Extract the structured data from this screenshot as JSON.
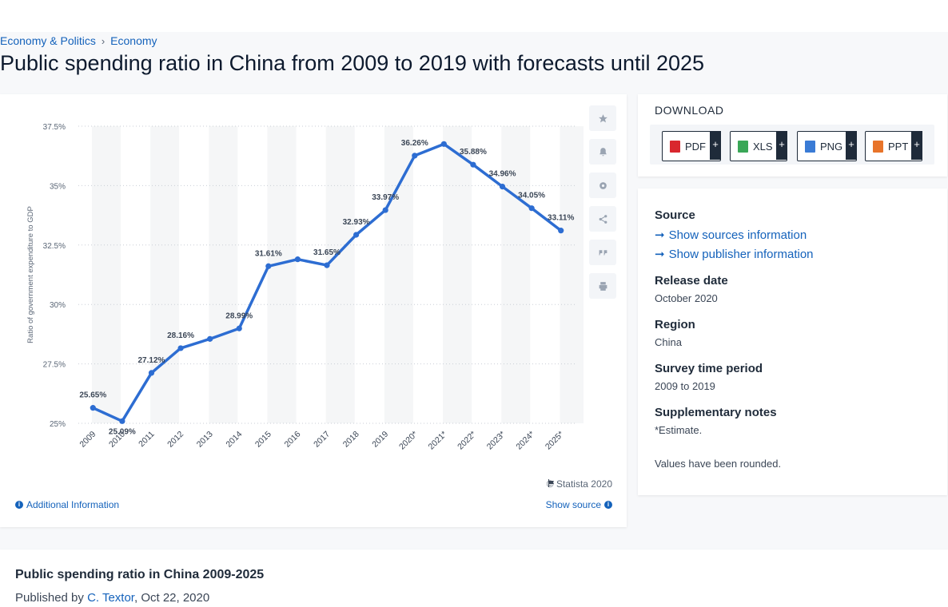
{
  "breadcrumb": {
    "parent": "Economy & Politics",
    "separator": "›",
    "current": "Economy"
  },
  "page_title": "Public spending ratio in China from 2009 to 2019 with forecasts until 2025",
  "chart": {
    "copyright": "© Statista 2020",
    "additional_info": "Additional Information",
    "show_source": "Show source",
    "tools": [
      "star-icon",
      "bell-icon",
      "gear-icon",
      "share-icon",
      "quote-icon",
      "print-icon"
    ]
  },
  "chart_data": {
    "type": "line",
    "title": "",
    "xlabel": "",
    "ylabel": "Ratio of government expenditure to GDP",
    "categories": [
      "2009",
      "2010",
      "2011",
      "2012",
      "2013",
      "2014",
      "2015",
      "2016",
      "2017",
      "2018",
      "2019",
      "2020*",
      "2021*",
      "2022*",
      "2023*",
      "2024*",
      "2025*"
    ],
    "values": [
      25.65,
      25.09,
      27.12,
      28.16,
      28.55,
      28.99,
      31.61,
      31.9,
      31.65,
      32.93,
      33.97,
      36.26,
      36.75,
      35.88,
      34.96,
      34.05,
      33.11
    ],
    "data_labels": [
      "25.65%",
      "25.09%",
      "27.12%",
      "28.16%",
      "",
      "28.99%",
      "31.61%",
      "",
      "31.65%",
      "32.93%",
      "33.97%",
      "36.26%",
      "",
      "35.88%",
      "34.96%",
      "34.05%",
      "33.11%"
    ],
    "ylim": [
      25,
      37.5
    ],
    "yticks": [
      25,
      27.5,
      30,
      32.5,
      35,
      37.5
    ],
    "ytick_labels": [
      "25%",
      "27.5%",
      "30%",
      "32.5%",
      "35%",
      "37.5%"
    ],
    "grid": true,
    "line_color": "#2d6dd2",
    "band_color": "#f5f6f7"
  },
  "download": {
    "title": "DOWNLOAD",
    "buttons": [
      {
        "label": "PDF",
        "icon": "pdf-file-icon",
        "color": "#d9272e"
      },
      {
        "label": "XLS",
        "icon": "xls-file-icon",
        "color": "#3aa757"
      },
      {
        "label": "PNG",
        "icon": "png-file-icon",
        "color": "#3a7bd5"
      },
      {
        "label": "PPT",
        "icon": "ppt-file-icon",
        "color": "#e8742a"
      }
    ],
    "plus": "+"
  },
  "details": {
    "source_heading": "Source",
    "show_sources": "Show sources information",
    "show_publisher": "Show publisher information",
    "release_heading": "Release date",
    "release_value": "October 2020",
    "region_heading": "Region",
    "region_value": "China",
    "period_heading": "Survey time period",
    "period_value": "2009 to 2019",
    "notes_heading": "Supplementary notes",
    "notes_value": "*Estimate.",
    "notes_value2": "Values have been rounded."
  },
  "publication": {
    "title": "Public spending ratio in China 2009-2025",
    "prefix": "Published by",
    "author": "C. Textor",
    "date": ", Oct 22, 2020"
  }
}
